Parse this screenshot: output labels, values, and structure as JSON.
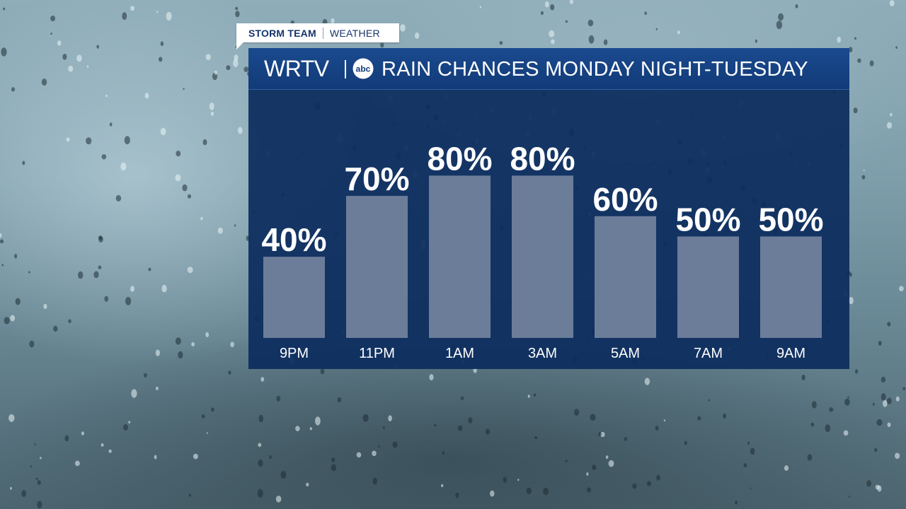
{
  "tag": {
    "team": "STORM TEAM",
    "section": "WEATHER"
  },
  "header": {
    "logo": "WRTV",
    "network_icon": "abc-logo-icon",
    "title": "RAIN CHANCES MONDAY NIGHT-TUESDAY"
  },
  "colors": {
    "panel": "#0c2c5e",
    "header": "#1a4a8f",
    "bar": "#6c7d99",
    "text": "#ffffff",
    "tag_text": "#15346b"
  },
  "chart_data": {
    "type": "bar",
    "categories": [
      "9PM",
      "11PM",
      "1AM",
      "3AM",
      "5AM",
      "7AM",
      "9AM"
    ],
    "values": [
      40,
      70,
      80,
      80,
      60,
      50,
      50
    ],
    "value_labels": [
      "40%",
      "70%",
      "80%",
      "80%",
      "60%",
      "50%",
      "50%"
    ],
    "unit": "%",
    "ylim": [
      0,
      100
    ],
    "grid": false,
    "title": "RAIN CHANCES MONDAY NIGHT-TUESDAY"
  }
}
